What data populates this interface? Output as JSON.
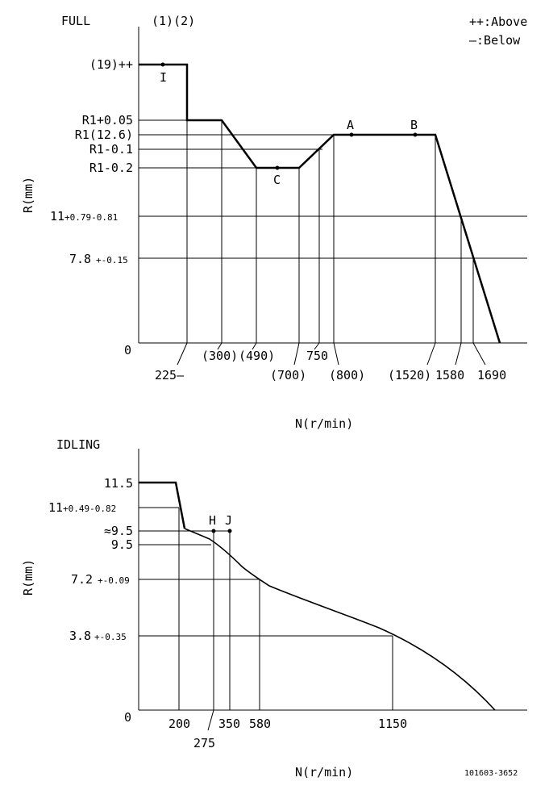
{
  "full": {
    "title": "FULL",
    "notes": "(1)(2)",
    "legend": {
      "above": "++:Above",
      "below": "—:Below"
    },
    "y_axis_label": "R(mm)",
    "x_axis_label": "N(r/min)",
    "origin": "0",
    "y_labels": {
      "l19": "(19)++",
      "r1p05": "R1+0.05",
      "r1": "R1(12.6)",
      "r1m01": "R1-0.1",
      "r1m02": "R1-0.2",
      "l11": "11",
      "l11_tol": "+0.79-0.81",
      "l78": "7.8",
      "l78_tol": "+-0.15"
    },
    "x_labels": {
      "n225": "225—",
      "n300": "(300)",
      "n490": "(490)",
      "n700": "(700)",
      "n750": "750",
      "n800": "(800)",
      "n1520": "(1520)",
      "n1580": "1580",
      "n1690": "1690"
    },
    "points": {
      "I": "I",
      "A": "A",
      "B": "B",
      "C": "C"
    }
  },
  "idling": {
    "title": "IDLING",
    "y_axis_label": "R(mm)",
    "x_axis_label": "N(r/min)",
    "origin": "0",
    "y_labels": {
      "l115": "11.5",
      "l11": "11",
      "l11_tol": "+0.49-0.82",
      "l95a": "≈9.5",
      "l95b": "9.5",
      "l72": "7.2",
      "l72_tol": "+-0.09",
      "l38": "3.8",
      "l38_tol": "+-0.35"
    },
    "x_labels": {
      "n200": "200",
      "n275": "275",
      "n350": "350",
      "n580": "580",
      "n1150": "1150"
    },
    "points": {
      "H": "H",
      "J": "J"
    }
  },
  "footer": {
    "code": "101603-3652"
  }
}
